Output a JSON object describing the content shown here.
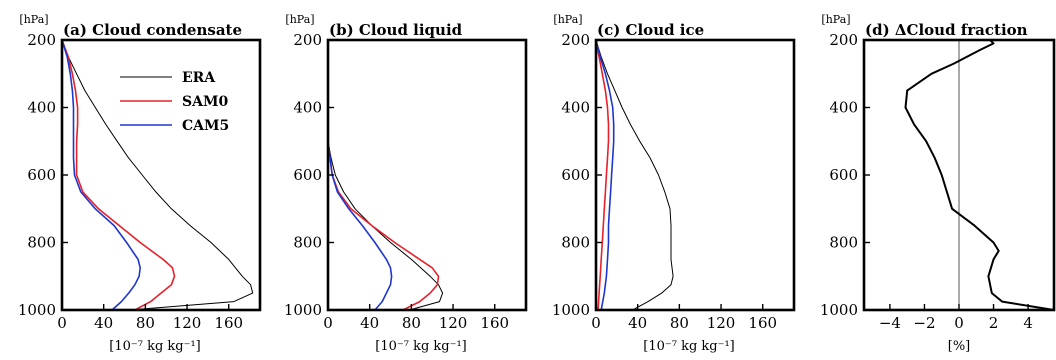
{
  "chart_data": [
    {
      "type": "line",
      "title": "(a) Cloud condensate",
      "y_unit": "[hPa]",
      "xlabel": "[10⁻⁷ kg kg⁻¹]",
      "xlim": [
        0,
        190
      ],
      "xticks": [
        "0",
        "40",
        "80",
        "120",
        "160"
      ],
      "xtick_values": [
        0,
        40,
        80,
        120,
        160
      ],
      "ylim": [
        1000,
        200
      ],
      "yticks": [
        "200",
        "400",
        "600",
        "800",
        "1000"
      ],
      "ytick_values": [
        200,
        400,
        600,
        800,
        1000
      ],
      "legend": "top-right",
      "series": [
        {
          "name": "ERA",
          "color": "#000000",
          "y": [
            200,
            250,
            300,
            350,
            400,
            450,
            500,
            550,
            600,
            650,
            700,
            750,
            800,
            850,
            900,
            925,
            950,
            975,
            1000
          ],
          "x": [
            0,
            6,
            14,
            22,
            32,
            42,
            53,
            64,
            77,
            90,
            105,
            123,
            143,
            160,
            173,
            181,
            183,
            165,
            65
          ]
        },
        {
          "name": "SAM0",
          "color": "#e8202a",
          "y": [
            200,
            250,
            300,
            350,
            400,
            450,
            500,
            550,
            600,
            650,
            700,
            750,
            800,
            850,
            875,
            900,
            925,
            950,
            975,
            1000
          ],
          "x": [
            0,
            6,
            10,
            13,
            15,
            15,
            14,
            14,
            14,
            20,
            35,
            55,
            75,
            97,
            106,
            108,
            105,
            95,
            85,
            70
          ]
        },
        {
          "name": "CAM5",
          "color": "#1e36cf",
          "y": [
            200,
            250,
            300,
            350,
            400,
            450,
            500,
            550,
            600,
            650,
            700,
            750,
            800,
            850,
            875,
            900,
            925,
            950,
            975,
            1000
          ],
          "x": [
            0,
            5,
            8,
            10,
            11,
            11,
            11,
            11,
            12,
            18,
            32,
            50,
            62,
            73,
            75,
            74,
            70,
            64,
            57,
            48
          ]
        }
      ]
    },
    {
      "type": "line",
      "title": "(b) Cloud liquid",
      "y_unit": "[hPa]",
      "xlabel": "[10⁻⁷ kg kg⁻¹]",
      "xlim": [
        0,
        190
      ],
      "xticks": [
        "0",
        "40",
        "80",
        "120",
        "160"
      ],
      "xtick_values": [
        0,
        40,
        80,
        120,
        160
      ],
      "ylim": [
        1000,
        200
      ],
      "yticks": [
        "200",
        "400",
        "600",
        "800",
        "1000"
      ],
      "ytick_values": [
        200,
        400,
        600,
        800,
        1000
      ],
      "series": [
        {
          "name": "ERA",
          "color": "#000000",
          "y": [
            500,
            550,
            600,
            650,
            700,
            750,
            800,
            850,
            900,
            925,
            950,
            975,
            1000
          ],
          "x": [
            0,
            3,
            7,
            15,
            26,
            42,
            60,
            80,
            98,
            106,
            110,
            107,
            78
          ]
        },
        {
          "name": "SAM0",
          "color": "#e8202a",
          "y": [
            500,
            550,
            600,
            650,
            700,
            750,
            800,
            850,
            875,
            900,
            925,
            950,
            975,
            1000
          ],
          "x": [
            0,
            2,
            4,
            10,
            22,
            42,
            64,
            88,
            100,
            106,
            105,
            98,
            88,
            72
          ]
        },
        {
          "name": "CAM5",
          "color": "#1e36cf",
          "y": [
            500,
            550,
            600,
            650,
            700,
            750,
            800,
            850,
            875,
            900,
            925,
            950,
            975,
            1000
          ],
          "x": [
            0,
            2,
            4,
            9,
            20,
            33,
            45,
            56,
            60,
            61,
            60,
            56,
            52,
            45
          ]
        }
      ]
    },
    {
      "type": "line",
      "title": "(c) Cloud ice",
      "y_unit": "[hPa]",
      "xlabel": "[10⁻⁷ kg kg⁻¹]",
      "xlim": [
        0,
        190
      ],
      "xticks": [
        "0",
        "40",
        "80",
        "120",
        "160"
      ],
      "xtick_values": [
        0,
        40,
        80,
        120,
        160
      ],
      "ylim": [
        1000,
        200
      ],
      "yticks": [
        "200",
        "400",
        "600",
        "800",
        "1000"
      ],
      "ytick_values": [
        200,
        400,
        600,
        800,
        1000
      ],
      "series": [
        {
          "name": "ERA",
          "color": "#000000",
          "y": [
            200,
            250,
            300,
            350,
            400,
            450,
            500,
            550,
            600,
            650,
            700,
            750,
            800,
            850,
            900,
            925,
            950,
            975,
            1000
          ],
          "x": [
            0,
            5,
            11,
            18,
            25,
            33,
            42,
            52,
            60,
            66,
            71,
            72,
            72,
            72,
            74,
            72,
            63,
            50,
            35
          ]
        },
        {
          "name": "SAM0",
          "color": "#e8202a",
          "y": [
            200,
            250,
            300,
            350,
            400,
            450,
            500,
            550,
            600,
            650,
            700,
            750,
            800,
            850,
            900,
            950,
            1000
          ],
          "x": [
            0,
            3,
            6,
            9,
            11,
            12,
            12,
            11,
            10,
            9,
            8,
            7,
            6,
            5,
            4,
            3,
            2
          ]
        },
        {
          "name": "CAM5",
          "color": "#1e36cf",
          "y": [
            200,
            250,
            300,
            350,
            400,
            450,
            500,
            550,
            600,
            650,
            700,
            750,
            800,
            850,
            900,
            950,
            1000
          ],
          "x": [
            0,
            4,
            9,
            13,
            16,
            17,
            17,
            16,
            15,
            14,
            13,
            12,
            12,
            11,
            10,
            8,
            5
          ]
        }
      ]
    },
    {
      "type": "line",
      "title": "(d) ΔCloud fraction",
      "y_unit": "[hPa]",
      "xlabel": "[%]",
      "xlim": [
        -5.5,
        5.5
      ],
      "xticks": [
        "−4",
        "−2",
        "0",
        "2",
        "4"
      ],
      "xtick_values": [
        -4,
        -2,
        0,
        2,
        4
      ],
      "ylim": [
        1000,
        200
      ],
      "yticks": [
        "200",
        "400",
        "600",
        "800",
        "1000"
      ],
      "ytick_values": [
        200,
        400,
        600,
        800,
        1000
      ],
      "zero_line": 0,
      "series": [
        {
          "name": "",
          "color": "#000000",
          "y": [
            200,
            210,
            230,
            270,
            300,
            350,
            400,
            450,
            500,
            550,
            600,
            650,
            700,
            750,
            800,
            825,
            850,
            900,
            950,
            975,
            1000
          ],
          "x": [
            1.8,
            2.0,
            1.2,
            -0.3,
            -1.6,
            -3.0,
            -3.1,
            -2.6,
            -1.9,
            -1.4,
            -1.0,
            -0.7,
            -0.4,
            0.9,
            2.0,
            2.3,
            2.0,
            1.7,
            1.9,
            2.5,
            5.5
          ]
        }
      ]
    }
  ]
}
